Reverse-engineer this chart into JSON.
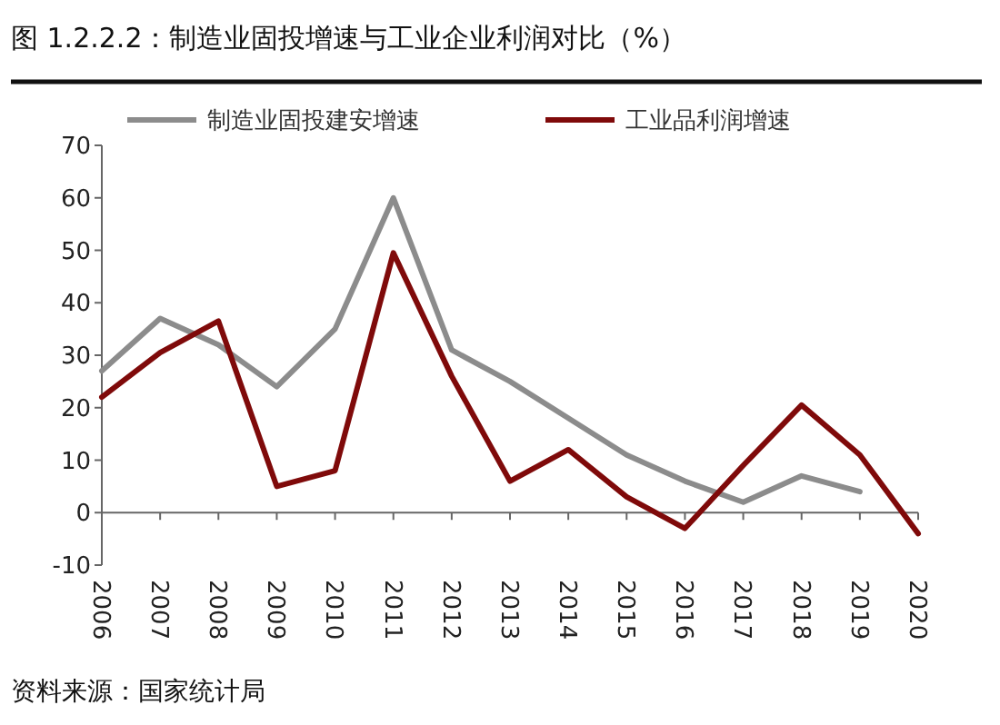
{
  "chart_data": {
    "type": "line",
    "title": "图 1.2.2.2：制造业固投增速与工业企业利润对比（%）",
    "annotations": [
      "资料来源：国家统计局"
    ],
    "categories": [
      "2006",
      "2007",
      "2008",
      "2009",
      "2010",
      "2011",
      "2012",
      "2013",
      "2014",
      "2015",
      "2016",
      "2017",
      "2018",
      "2019",
      "2020"
    ],
    "series": [
      {
        "name": "制造业固投建安增速",
        "color": "#8c8c8c",
        "values": [
          27,
          37,
          32,
          24,
          35,
          60,
          31,
          25,
          18,
          11,
          6,
          2,
          7,
          4,
          null
        ]
      },
      {
        "name": "工业品利润增速",
        "color": "#7f0a0a",
        "values": [
          22,
          30.5,
          36.5,
          5,
          8,
          49.5,
          26,
          6,
          12,
          3,
          -3,
          9,
          20.5,
          11,
          -4
        ]
      }
    ],
    "ylim": [
      -10,
      70
    ],
    "yticks": [
      -10,
      0,
      10,
      20,
      30,
      40,
      50,
      60,
      70
    ],
    "legend": "top",
    "marker": "none",
    "line_style": "solid"
  }
}
